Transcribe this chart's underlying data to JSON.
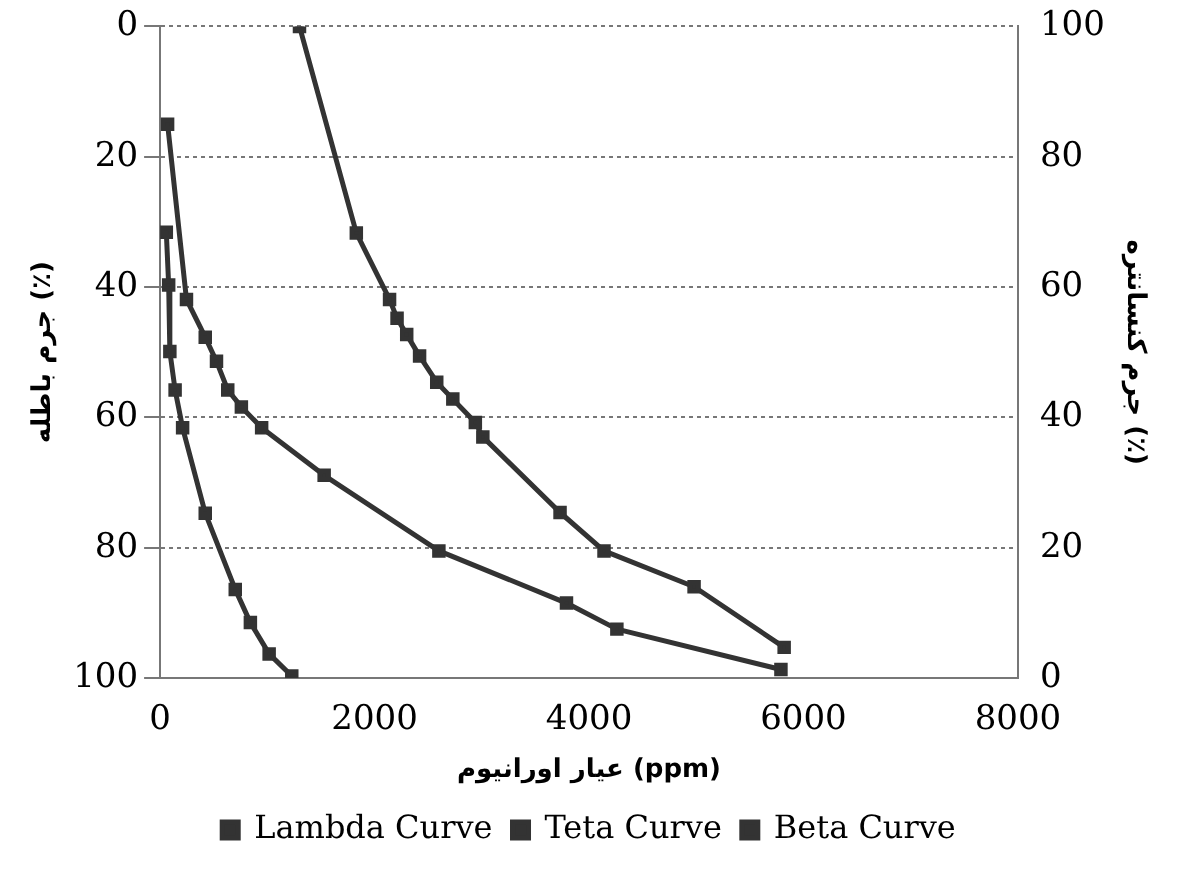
{
  "chart_data": {
    "type": "line",
    "xlabel": "عیار اورانیوم (ppm)",
    "ylabel": "جرم باطله (٪)",
    "y2label": "جرم کنسانتره (٪)",
    "xlim": [
      0,
      8000
    ],
    "xticks": [
      0,
      2000,
      4000,
      6000,
      8000
    ],
    "ylim": [
      100,
      0
    ],
    "yticks": [
      0,
      20,
      40,
      60,
      80,
      100
    ],
    "y2lim": [
      0,
      100
    ],
    "y2ticks": [
      0,
      20,
      40,
      60,
      80,
      100
    ],
    "grid": "y",
    "legend": "bottom",
    "marker": "square",
    "line_style": "solid",
    "series": [
      {
        "name": "Lambda Curve",
        "color": "#333333",
        "x": [
          1300,
          1830,
          2140,
          2210,
          2300,
          2420,
          2580,
          2730,
          2940,
          3010,
          3730,
          4140,
          4980,
          5820
        ],
        "values": [
          0,
          31.7,
          41.9,
          44.8,
          47.3,
          50.6,
          54.6,
          57.2,
          60.8,
          63,
          74.6,
          80.5,
          86,
          95.3
        ]
      },
      {
        "name": "Teta Curve",
        "color": "#333333",
        "x": [
          70,
          246,
          421,
          526,
          631,
          758,
          947,
          1530,
          2600,
          3790,
          4260,
          5790
        ],
        "values": [
          15,
          41.9,
          47.7,
          51.4,
          55.8,
          58.4,
          61.6,
          68.9,
          80.5,
          88.5,
          92.5,
          98.7
        ]
      },
      {
        "name": "Beta Curve",
        "color": "#333333",
        "x": [
          58,
          80,
          91,
          140,
          210,
          421,
          701,
          842,
          1017,
          1228
        ],
        "values": [
          31.6,
          39.7,
          49.9,
          55.8,
          61.6,
          74.7,
          86.4,
          91.5,
          96.3,
          99.7
        ]
      }
    ]
  }
}
